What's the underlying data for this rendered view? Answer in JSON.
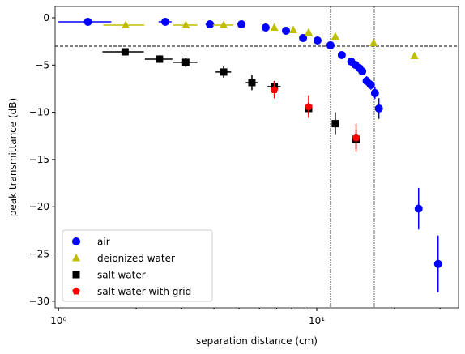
{
  "chart_data": {
    "type": "scatter",
    "xlabel": "separation distance (cm)",
    "ylabel": "peak transmittance (dB)",
    "xscale": "log",
    "xlim": [
      0.97,
      35.4
    ],
    "xticks": [
      {
        "value": 1,
        "label": "10⁰"
      },
      {
        "value": 10,
        "label": "10¹"
      }
    ],
    "xminorticks": [
      2,
      3,
      4,
      5,
      6,
      7,
      8,
      9,
      20,
      30
    ],
    "ylim": [
      -30.7,
      1.2
    ],
    "yticks": [
      {
        "value": 0,
        "label": "0"
      },
      {
        "value": -5,
        "label": "−5"
      },
      {
        "value": -10,
        "label": "−10"
      },
      {
        "value": -15,
        "label": "−15"
      },
      {
        "value": -20,
        "label": "−20"
      },
      {
        "value": -25,
        "label": "−25"
      },
      {
        "value": -30,
        "label": "−30"
      }
    ],
    "hlines": [
      -3.0
    ],
    "vlines": [
      11.3,
      16.7
    ],
    "legend": "lower left",
    "series": [
      {
        "name": "air",
        "color": "#0000ff",
        "marker": "circle",
        "x": [
          1.3,
          2.59,
          3.86,
          5.11,
          6.34,
          7.6,
          8.85,
          10.07,
          11.3,
          12.5,
          13.6,
          14.1,
          14.6,
          15.0,
          15.6,
          16.2,
          16.8,
          17.4,
          24.8,
          29.5
        ],
        "values": [
          -0.43,
          -0.43,
          -0.69,
          -0.69,
          -1.03,
          -1.37,
          -2.14,
          -2.4,
          -2.91,
          -3.94,
          -4.63,
          -4.97,
          -5.31,
          -5.66,
          -6.68,
          -7.11,
          -7.97,
          -9.6,
          -20.2,
          -26.05
        ],
        "xerr": [
          0.3,
          0.15,
          0.15,
          null,
          null,
          null,
          null,
          null,
          null,
          null,
          null,
          null,
          null,
          null,
          null,
          null,
          null,
          null,
          null,
          null
        ],
        "yerr": [
          null,
          null,
          null,
          null,
          null,
          null,
          null,
          null,
          null,
          null,
          0.4,
          0.4,
          0.4,
          0.4,
          0.5,
          0.5,
          0.6,
          1.1,
          2.2,
          3.0
        ]
      },
      {
        "name": "deionized water",
        "color": "#bfbf00",
        "marker": "triangle",
        "x": [
          1.82,
          3.11,
          4.36,
          6.85,
          8.11,
          9.3,
          11.8,
          16.6,
          23.9
        ],
        "values": [
          -0.77,
          -0.77,
          -0.77,
          -1.03,
          -1.29,
          -1.54,
          -1.97,
          -2.66,
          -4.03
        ],
        "xerr": [
          0.33,
          0.34,
          0.4,
          null,
          null,
          null,
          null,
          null,
          null
        ],
        "yerr": [
          null,
          null,
          null,
          null,
          null,
          null,
          null,
          null,
          null
        ]
      },
      {
        "name": "salt water",
        "color": "#000000",
        "marker": "square",
        "x": [
          1.81,
          2.46,
          3.11,
          4.36,
          5.61,
          6.85,
          9.3,
          11.8,
          14.2
        ],
        "values": [
          -3.6,
          -4.37,
          -4.71,
          -5.74,
          -6.86,
          -7.28,
          -9.6,
          -11.2,
          -12.85
        ],
        "xerr": [
          0.33,
          0.3,
          0.34,
          0.3,
          0.3,
          0.4,
          null,
          null,
          null
        ],
        "yerr": [
          0.3,
          0.4,
          0.5,
          0.6,
          0.8,
          0.6,
          0.6,
          1.2,
          1.0
        ]
      },
      {
        "name": "salt water with grid",
        "color": "#ff0000",
        "marker": "pentagon",
        "x": [
          6.85,
          9.3,
          14.2
        ],
        "values": [
          -7.63,
          -9.4,
          -12.7
        ],
        "xerr": [
          null,
          null,
          null
        ],
        "yerr": [
          0.9,
          1.2,
          1.5
        ]
      }
    ]
  }
}
